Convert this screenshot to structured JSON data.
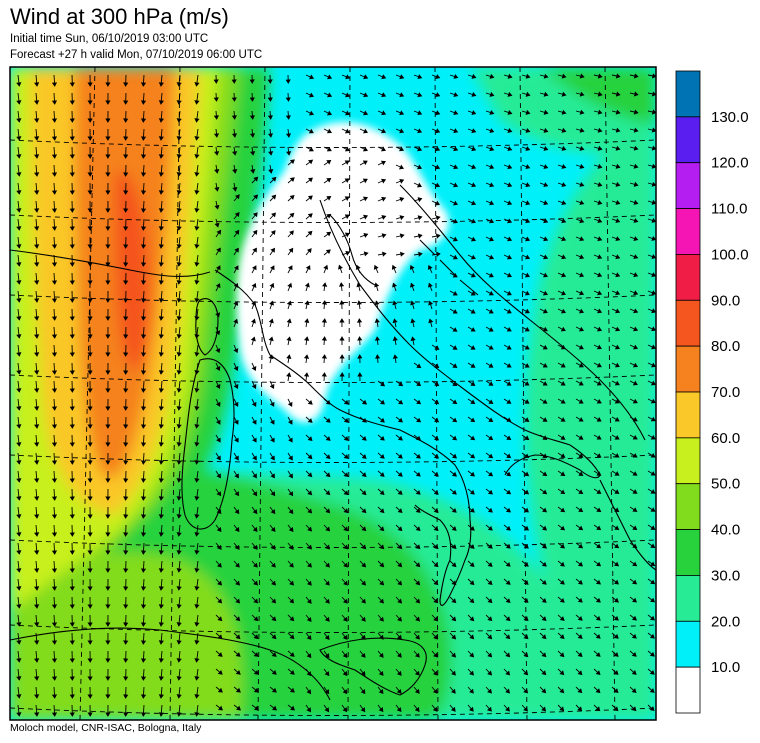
{
  "header": {
    "title": "Wind at 300 hPa (m/s)",
    "initial_time": "Initial time  Sun, 06/10/2019 03:00 UTC",
    "forecast_valid": "Forecast +27 h valid  Mon, 07/10/2019 06:00 UTC"
  },
  "footer": {
    "credit": "Moloch model, CNR-ISAC, Bologna, Italy"
  },
  "colorbar": {
    "labels": [
      "130.0",
      "120.0",
      "110.0",
      "100.0",
      "90.0",
      "80.0",
      "70.0",
      "60.0",
      "50.0",
      "40.0",
      "30.0",
      "20.0",
      "10.0"
    ],
    "colors": [
      "#0073b4",
      "#5a1ef0",
      "#b41ef0",
      "#f514b4",
      "#f01e46",
      "#f5551e",
      "#f5821e",
      "#fac828",
      "#c8f01e",
      "#82dc1e",
      "#28d23c",
      "#28eb96",
      "#00f0fa",
      "#ffffff"
    ]
  },
  "map_colors": {
    "calm": "#ffffff",
    "band_10_20": "#00f0fa",
    "band_20_30": "#28eb96",
    "band_30_40": "#28d23c",
    "band_40_50": "#82dc1e",
    "band_50_60": "#c8f01e",
    "band_60_70": "#fac828",
    "band_70_80": "#f5821e",
    "band_80_90": "#f5551e"
  }
}
